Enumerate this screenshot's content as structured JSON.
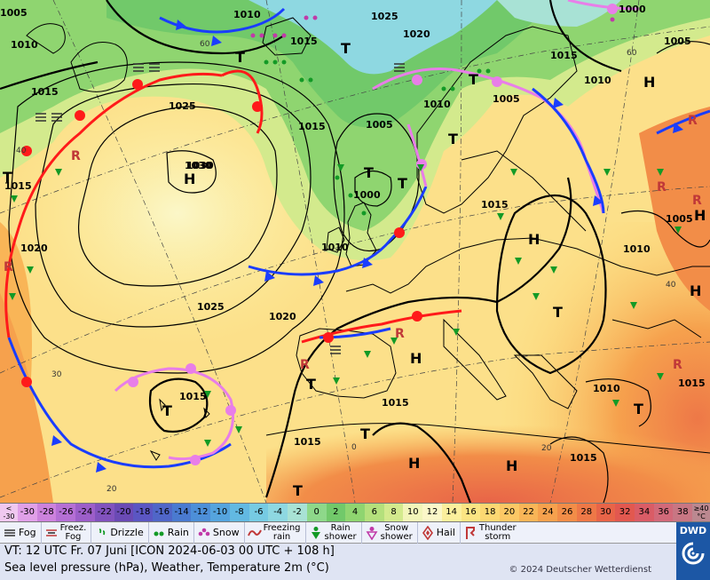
{
  "map": {
    "pressure_labels": [
      {
        "text": "1005"
      },
      {
        "text": "1010"
      },
      {
        "text": "1010"
      },
      {
        "text": "1015"
      },
      {
        "text": "1025"
      },
      {
        "text": "1020"
      },
      {
        "text": "1000"
      },
      {
        "text": "1005"
      },
      {
        "text": "1015"
      },
      {
        "text": "1025"
      },
      {
        "text": "1030"
      },
      {
        "text": "1015"
      },
      {
        "text": "1005"
      },
      {
        "text": "1010"
      },
      {
        "text": "1000"
      },
      {
        "text": "1010"
      },
      {
        "text": "1015"
      },
      {
        "text": "1020"
      },
      {
        "text": "1025"
      },
      {
        "text": "1020"
      },
      {
        "text": "1010"
      },
      {
        "text": "1005"
      },
      {
        "text": "1015"
      },
      {
        "text": "1010"
      },
      {
        "text": "1005"
      },
      {
        "text": "1015"
      },
      {
        "text": "1010"
      },
      {
        "text": "1015"
      },
      {
        "text": "1015"
      },
      {
        "text": "1015"
      },
      {
        "text": "1015"
      }
    ],
    "centers": [
      {
        "type": "H",
        "label": "1030"
      },
      {
        "type": "T"
      },
      {
        "type": "T"
      },
      {
        "type": "T"
      },
      {
        "type": "T"
      },
      {
        "type": "T",
        "label": "1015"
      },
      {
        "type": "H"
      },
      {
        "type": "H"
      },
      {
        "type": "H"
      },
      {
        "type": "H"
      },
      {
        "type": "H"
      },
      {
        "type": "H"
      },
      {
        "type": "H"
      },
      {
        "type": "T"
      },
      {
        "type": "T"
      },
      {
        "type": "T"
      },
      {
        "type": "T"
      },
      {
        "type": "T"
      },
      {
        "type": "T"
      },
      {
        "type": "T"
      },
      {
        "type": "T"
      }
    ],
    "temperature_labels": [
      "40",
      "30",
      "20",
      "20",
      "0",
      "40",
      "60",
      "60"
    ]
  },
  "colorbar": {
    "low_end": [
      "<",
      "-30"
    ],
    "values": [
      "-30",
      "-28",
      "-26",
      "-24",
      "-22",
      "-20",
      "-18",
      "-16",
      "-14",
      "-12",
      "-10",
      "-8",
      "-6",
      "-4",
      "-2",
      "0",
      "2",
      "4",
      "6",
      "8",
      "10",
      "12",
      "14",
      "16",
      "18",
      "20",
      "22",
      "24",
      "26",
      "28",
      "30",
      "32",
      "34",
      "36",
      "38"
    ],
    "colors": [
      "#e0a0e8",
      "#cc82dd",
      "#b56fd5",
      "#9c5ec9",
      "#8152be",
      "#6a4ab5",
      "#5b56c3",
      "#5066c8",
      "#4a7ad0",
      "#4d8fd8",
      "#55a4de",
      "#62b9e2",
      "#76cbe3",
      "#8ed8e1",
      "#a8e2d5",
      "#8ed88a",
      "#71c96a",
      "#8fd570",
      "#b4e07c",
      "#d3ea8d",
      "#f2f5b9",
      "#fbf7c8",
      "#fbef9d",
      "#fbe583",
      "#fcd872",
      "#fcc865",
      "#f9b557",
      "#f6a14d",
      "#f28d48",
      "#ee7847",
      "#e86448",
      "#e2584f",
      "#da5c66",
      "#d26979",
      "#c87683"
    ],
    "high_end": [
      "≥40",
      "°C"
    ]
  },
  "legend": [
    {
      "icon": "fog-icon",
      "label": "Fog"
    },
    {
      "icon": "freezing-fog-icon",
      "label": "Freez.\nFog"
    },
    {
      "icon": "drizzle-icon",
      "label": "Drizzle"
    },
    {
      "icon": "rain-icon",
      "label": "Rain"
    },
    {
      "icon": "snow-icon",
      "label": "Snow"
    },
    {
      "icon": "freezing-rain-icon",
      "label": "Freezing\nrain"
    },
    {
      "icon": "rain-shower-icon",
      "label": "Rain\nshower"
    },
    {
      "icon": "snow-shower-icon",
      "label": "Snow\nshower"
    },
    {
      "icon": "hail-icon",
      "label": "Hail"
    },
    {
      "icon": "thunderstorm-icon",
      "label": "Thunder\nstorm"
    }
  ],
  "info": {
    "valid_time": "VT: 12 UTC Fr.  07 Juni [ICON 2024-06-03  00 UTC + 108 h]",
    "subtitle": "Sea level pressure (hPa), Weather, Temperature 2m (°C)",
    "copyright": "© 2024 Deutscher Wetterdienst"
  },
  "brand": {
    "name": "DWD"
  },
  "colors": {
    "warm_front": "#ff1a1a",
    "cold_front": "#1a3dff",
    "occluded_front": "#e87ee8",
    "isobar": "#000000",
    "legend_bg": "#eef1fa",
    "info_bg": "#dfe4f3",
    "brand_bg": "#1c57a5"
  }
}
